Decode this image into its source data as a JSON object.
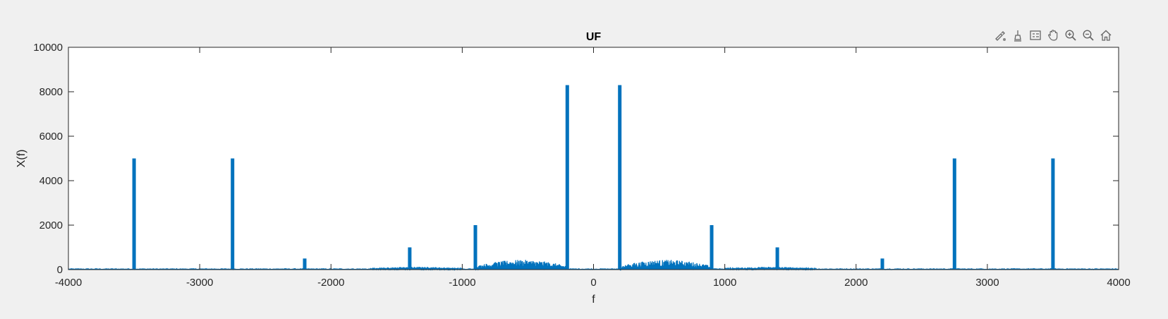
{
  "toolbar": {
    "icons": [
      "brush-edit-icon",
      "data-cursor-icon",
      "legend-icon",
      "pan-hand-icon",
      "zoom-in-icon",
      "zoom-out-icon",
      "home-icon"
    ]
  },
  "colors": {
    "background": "#f0f0f0",
    "axes_background": "#ffffff",
    "series": "#0072bd",
    "axis": "#262626"
  },
  "chart_data": {
    "type": "line",
    "title": "UF",
    "xlabel": "f",
    "ylabel": "X(f)",
    "xlim": [
      -4000,
      4000
    ],
    "ylim": [
      0,
      10000
    ],
    "xticks": [
      -4000,
      -3000,
      -2000,
      -1000,
      0,
      1000,
      2000,
      3000,
      4000
    ],
    "yticks": [
      0,
      2000,
      4000,
      6000,
      8000,
      10000
    ],
    "grid": false,
    "legend": "none",
    "series": [
      {
        "noise_floor": 20,
        "peaks": [
          {
            "f": -3500,
            "value": 5000
          },
          {
            "f": -2750,
            "value": 5000
          },
          {
            "f": -2200,
            "value": 500
          },
          {
            "f": -1400,
            "value": 1000
          },
          {
            "f": -900,
            "value": 2000
          },
          {
            "f": -200,
            "value": 8300
          },
          {
            "f": 200,
            "value": 8300
          },
          {
            "f": 900,
            "value": 2000
          },
          {
            "f": 1400,
            "value": 1000
          },
          {
            "f": 2200,
            "value": 500
          },
          {
            "f": 2750,
            "value": 5000
          },
          {
            "f": 3500,
            "value": 5000
          }
        ],
        "bands": [
          {
            "f_from": -1700,
            "f_to": -1000,
            "value": 100
          },
          {
            "f_from": -900,
            "f_to": -200,
            "value": 350
          },
          {
            "f_from": 200,
            "f_to": 900,
            "value": 350
          },
          {
            "f_from": 1000,
            "f_to": 1700,
            "value": 100
          }
        ]
      }
    ]
  }
}
